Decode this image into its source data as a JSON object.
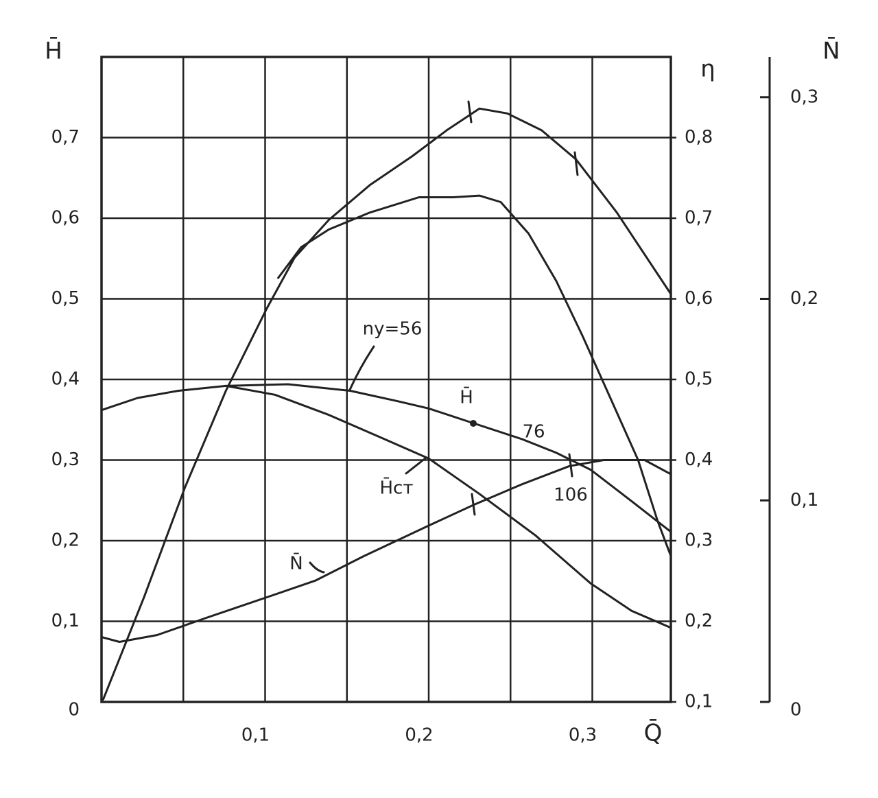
{
  "chart_data": {
    "type": "line",
    "x_label": "Q̄",
    "y_label": "H̄",
    "y2_label": "η",
    "y3_label": "N̄",
    "xlim": [
      0,
      0.348
    ],
    "xticks": [
      {
        "value": 0.1,
        "label": "0,1"
      },
      {
        "value": 0.2,
        "label": "0,2"
      },
      {
        "value": 0.3,
        "label": "0,3"
      }
    ],
    "xgrid": [
      0.05,
      0.1,
      0.15,
      0.2,
      0.25,
      0.3
    ],
    "ylim": [
      0,
      0.8
    ],
    "yticks": [
      0,
      {
        "value": 0.1,
        "label": "0,1"
      },
      {
        "value": 0.2,
        "label": "0,2"
      },
      {
        "value": 0.3,
        "label": "0,3"
      },
      {
        "value": 0.4,
        "label": "0,4"
      },
      {
        "value": 0.5,
        "label": "0,5"
      },
      {
        "value": 0.6,
        "label": "0,6"
      },
      {
        "value": 0.7,
        "label": "0,7"
      }
    ],
    "y2lim": [
      0.1,
      0.9
    ],
    "y2ticks": [
      {
        "value": 0.1,
        "label": "0,1"
      },
      {
        "value": 0.2,
        "label": "0,2"
      },
      {
        "value": 0.3,
        "label": "0,3"
      },
      {
        "value": 0.4,
        "label": "0,4"
      },
      {
        "value": 0.5,
        "label": "0,5"
      },
      {
        "value": 0.6,
        "label": "0,6"
      },
      {
        "value": 0.7,
        "label": "0,7"
      },
      {
        "value": 0.8,
        "label": "0,8"
      }
    ],
    "y3lim": [
      0,
      0.32
    ],
    "y3ticks": [
      0,
      {
        "value": 0.1,
        "label": "0,1"
      },
      {
        "value": 0.2,
        "label": "0,2"
      },
      {
        "value": 0.3,
        "label": "0,3"
      }
    ],
    "grid": true,
    "color": "#222222",
    "series": [
      {
        "axis": "y2",
        "x": [
          0.001,
          0.026,
          0.051,
          0.076,
          0.101,
          0.118,
          0.139,
          0.164,
          0.19,
          0.211,
          0.231,
          0.248,
          0.269,
          0.29,
          0.315,
          0.348
        ],
        "values": [
          0.103,
          0.23,
          0.366,
          0.486,
          0.588,
          0.651,
          0.698,
          0.741,
          0.777,
          0.809,
          0.836,
          0.83,
          0.809,
          0.773,
          0.707,
          0.606
        ]
      },
      {
        "axis": "y2",
        "x": [
          0.108,
          0.122,
          0.139,
          0.164,
          0.194,
          0.215,
          0.231,
          0.244,
          0.261,
          0.278,
          0.294,
          0.311,
          0.328,
          0.34,
          0.348
        ],
        "values": [
          0.626,
          0.664,
          0.686,
          0.707,
          0.726,
          0.726,
          0.728,
          0.72,
          0.681,
          0.622,
          0.554,
          0.477,
          0.4,
          0.324,
          0.281
        ]
      },
      {
        "axis": "y",
        "x": [
          0,
          0.022,
          0.047,
          0.076,
          0.114,
          0.152,
          0.181,
          0.2,
          0.227,
          0.257,
          0.278,
          0.299,
          0.324,
          0.348
        ],
        "values": [
          0.362,
          0.377,
          0.386,
          0.392,
          0.394,
          0.386,
          0.373,
          0.364,
          0.346,
          0.326,
          0.309,
          0.288,
          0.249,
          0.211
        ]
      },
      {
        "axis": "y",
        "x": [
          0.076,
          0.106,
          0.139,
          0.173,
          0.2,
          0.231,
          0.265,
          0.299,
          0.324,
          0.348
        ],
        "values": [
          0.392,
          0.381,
          0.356,
          0.326,
          0.302,
          0.258,
          0.207,
          0.147,
          0.113,
          0.092
        ]
      },
      {
        "axis": "y3",
        "x": [
          0,
          0.011,
          0.034,
          0.064,
          0.101,
          0.131,
          0.16,
          0.2,
          0.227,
          0.257,
          0.286,
          0.307,
          0.332,
          0.348
        ],
        "values": [
          0.0322,
          0.0298,
          0.0332,
          0.0417,
          0.0519,
          0.0603,
          0.0722,
          0.0875,
          0.0976,
          0.108,
          0.117,
          0.12,
          0.12,
          0.113
        ]
      }
    ],
    "annotations": [
      "ny=56",
      "H̄",
      "76",
      "106",
      "H̄ст",
      "N̄"
    ]
  }
}
